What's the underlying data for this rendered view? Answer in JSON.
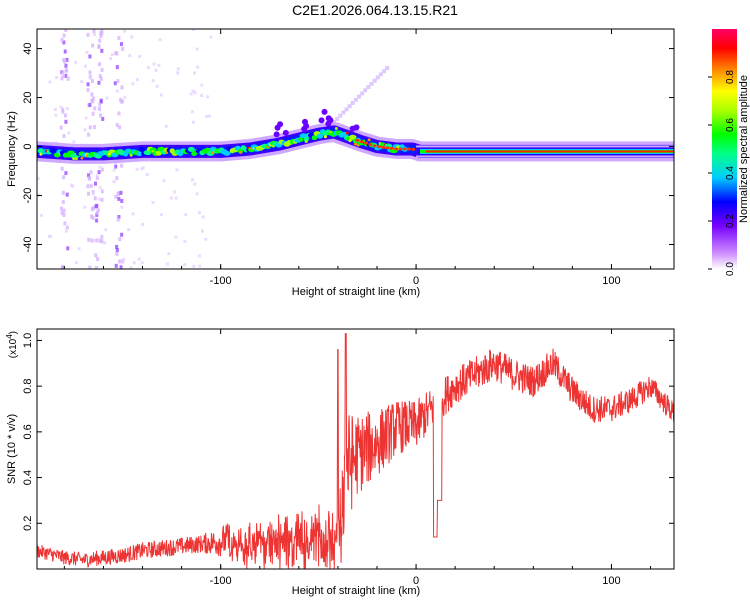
{
  "title": "C2E1.2026.064.13.15.R21",
  "chart_data": [
    {
      "type": "heatmap",
      "name": "spectrogram",
      "title": "C2E1.2026.064.13.15.R21",
      "xlabel": "Height of straight line (km)",
      "ylabel": "Frequency (Hz)",
      "xlim": [
        -194,
        132
      ],
      "ylim": [
        -50,
        48
      ],
      "xticks": [
        -100,
        0,
        100
      ],
      "yticks": [
        -40,
        -20,
        0,
        20,
        40
      ],
      "ridge": [
        {
          "x": -194,
          "y": -2
        },
        {
          "x": -175,
          "y": -3
        },
        {
          "x": -160,
          "y": -3
        },
        {
          "x": -140,
          "y": -2
        },
        {
          "x": -120,
          "y": -2
        },
        {
          "x": -100,
          "y": -2
        },
        {
          "x": -85,
          "y": -1
        },
        {
          "x": -70,
          "y": 1
        },
        {
          "x": -60,
          "y": 3
        },
        {
          "x": -50,
          "y": 5
        },
        {
          "x": -42,
          "y": 6
        },
        {
          "x": -35,
          "y": 4
        },
        {
          "x": -28,
          "y": 2
        },
        {
          "x": -20,
          "y": 0
        },
        {
          "x": -10,
          "y": -1
        },
        {
          "x": -2,
          "y": -1
        },
        {
          "x": 2,
          "y": -2
        },
        {
          "x": 20,
          "y": -2
        },
        {
          "x": 60,
          "y": -2
        },
        {
          "x": 100,
          "y": -2
        },
        {
          "x": 132,
          "y": -2
        }
      ],
      "colorbar": {
        "label": "Normalized spectral amplitude",
        "range": [
          0.0,
          1.0
        ],
        "ticks": [
          0.0,
          0.2,
          0.4,
          0.6,
          0.8
        ],
        "tick_labels": [
          "0.0",
          "0.2",
          "0.4",
          "0.6",
          "0.8"
        ]
      }
    },
    {
      "type": "line",
      "name": "snr",
      "xlabel": "Height of straight line (km)",
      "ylabel": "SNR (10 * v/v)",
      "multiplier_label": "(x10",
      "multiplier_exp": "4",
      "xlim": [
        -194,
        132
      ],
      "ylim": [
        0,
        1.05
      ],
      "xticks": [
        -100,
        0,
        100
      ],
      "yticks": [
        0.2,
        0.4,
        0.6,
        0.8,
        1.0
      ],
      "ytick_labels": [
        "0.2",
        "0.4",
        "0.6",
        "0.8",
        "1.0"
      ],
      "color": "#ee3333",
      "envelope": [
        {
          "x": -194,
          "y": 0.08
        },
        {
          "x": -180,
          "y": 0.05
        },
        {
          "x": -170,
          "y": 0.04
        },
        {
          "x": -160,
          "y": 0.05
        },
        {
          "x": -150,
          "y": 0.06
        },
        {
          "x": -140,
          "y": 0.08
        },
        {
          "x": -130,
          "y": 0.09
        },
        {
          "x": -120,
          "y": 0.1
        },
        {
          "x": -110,
          "y": 0.11
        },
        {
          "x": -100,
          "y": 0.12
        },
        {
          "x": -90,
          "y": 0.14
        },
        {
          "x": -80,
          "y": 0.17
        },
        {
          "x": -70,
          "y": 0.17
        },
        {
          "x": -60,
          "y": 0.18
        },
        {
          "x": -50,
          "y": 0.2
        },
        {
          "x": -42,
          "y": 0.22
        },
        {
          "x": -35,
          "y": 0.45
        },
        {
          "x": -30,
          "y": 0.5
        },
        {
          "x": -20,
          "y": 0.55
        },
        {
          "x": -10,
          "y": 0.62
        },
        {
          "x": 0,
          "y": 0.63
        },
        {
          "x": 10,
          "y": 0.72
        },
        {
          "x": 20,
          "y": 0.8
        },
        {
          "x": 30,
          "y": 0.85
        },
        {
          "x": 40,
          "y": 0.9
        },
        {
          "x": 50,
          "y": 0.85
        },
        {
          "x": 60,
          "y": 0.82
        },
        {
          "x": 70,
          "y": 0.9
        },
        {
          "x": 80,
          "y": 0.78
        },
        {
          "x": 90,
          "y": 0.7
        },
        {
          "x": 100,
          "y": 0.7
        },
        {
          "x": 110,
          "y": 0.74
        },
        {
          "x": 120,
          "y": 0.8
        },
        {
          "x": 132,
          "y": 0.68
        }
      ],
      "noise": [
        {
          "x": -194,
          "n": 0.03
        },
        {
          "x": -110,
          "n": 0.04
        },
        {
          "x": -95,
          "n": 0.08
        },
        {
          "x": -80,
          "n": 0.12
        },
        {
          "x": -60,
          "n": 0.12
        },
        {
          "x": -45,
          "n": 0.15
        },
        {
          "x": -38,
          "n": 0.28
        },
        {
          "x": -30,
          "n": 0.18
        },
        {
          "x": -10,
          "n": 0.12
        },
        {
          "x": 20,
          "n": 0.08
        },
        {
          "x": 132,
          "n": 0.05
        }
      ],
      "dips": [
        {
          "x": 10,
          "y": 0.14
        },
        {
          "x": 12,
          "y": 0.3
        }
      ],
      "spikes": [
        {
          "x": -36,
          "y": 1.03
        },
        {
          "x": -40,
          "y": 0.96
        }
      ]
    }
  ]
}
